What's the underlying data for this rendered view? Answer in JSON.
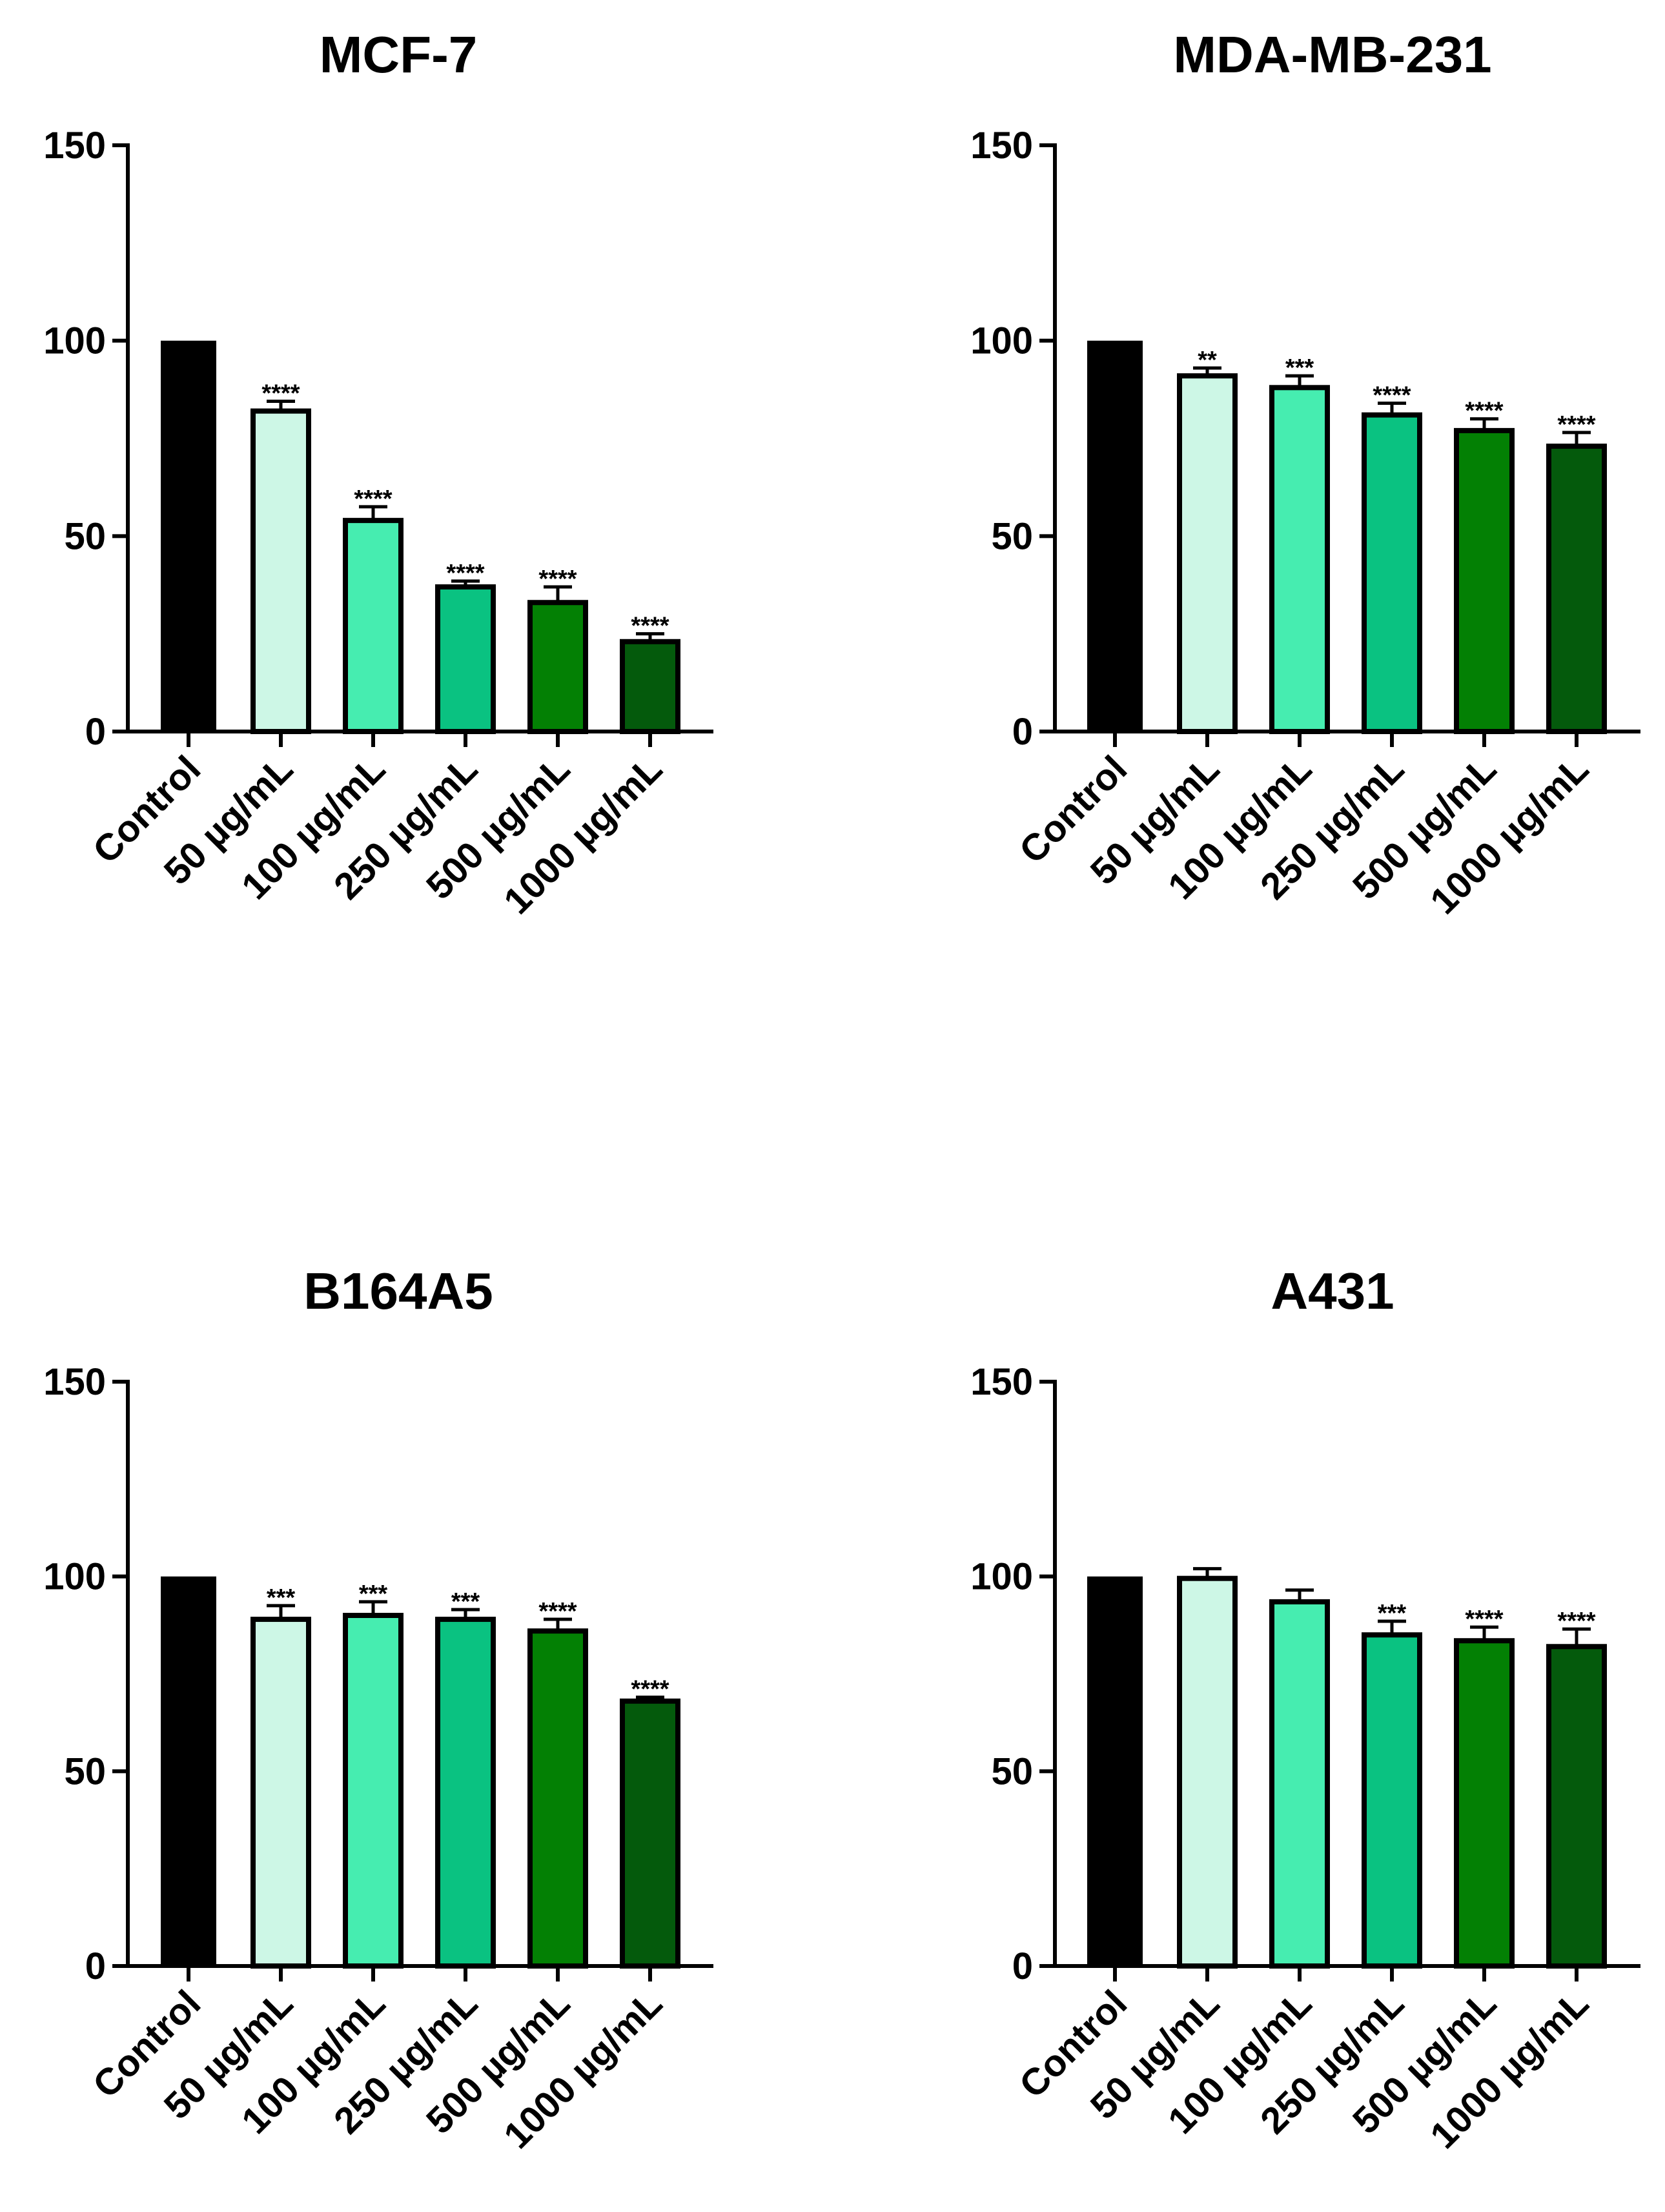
{
  "chart_data": [
    {
      "type": "bar",
      "title": "MCF-7",
      "categories": [
        "Control",
        "50 µg/mL",
        "100 µg/mL",
        "250 µg/mL",
        "500 µg/mL",
        "1000 µg/mL"
      ],
      "values": [
        100,
        82,
        54,
        37,
        33,
        23
      ],
      "errors": [
        0,
        2.5,
        3.5,
        1.5,
        4,
        2
      ],
      "significance": [
        "",
        "****",
        "****",
        "****",
        "****",
        "****"
      ],
      "ylim": [
        0,
        150
      ],
      "yticks": [
        0,
        50,
        100,
        150
      ],
      "xlabel": "",
      "ylabel": ""
    },
    {
      "type": "bar",
      "title": "MDA-MB-231",
      "categories": [
        "Control",
        "50 µg/mL",
        "100 µg/mL",
        "250 µg/mL",
        "500 µg/mL",
        "1000 µg/mL"
      ],
      "values": [
        100,
        91,
        88,
        81,
        77,
        73
      ],
      "errors": [
        0,
        2,
        3,
        3,
        3,
        3.5
      ],
      "significance": [
        "",
        "**",
        "***",
        "****",
        "****",
        "****"
      ],
      "ylim": [
        0,
        150
      ],
      "yticks": [
        0,
        50,
        100,
        150
      ],
      "xlabel": "",
      "ylabel": ""
    },
    {
      "type": "bar",
      "title": "B164A5",
      "categories": [
        "Control",
        "50 µg/mL",
        "100 µg/mL",
        "250 µg/mL",
        "500 µg/mL",
        "1000 µg/mL"
      ],
      "values": [
        100,
        89,
        90,
        89,
        86,
        68
      ],
      "errors": [
        0,
        3.5,
        3.5,
        2.5,
        3,
        1
      ],
      "significance": [
        "",
        "***",
        "***",
        "***",
        "****",
        "****"
      ],
      "ylim": [
        0,
        150
      ],
      "yticks": [
        0,
        50,
        100,
        150
      ],
      "xlabel": "",
      "ylabel": ""
    },
    {
      "type": "bar",
      "title": "A431",
      "categories": [
        "Control",
        "50 µg/mL",
        "100 µg/mL",
        "250 µg/mL",
        "500 µg/mL",
        "1000 µg/mL"
      ],
      "values": [
        100,
        99.5,
        93.5,
        85,
        83.5,
        82
      ],
      "errors": [
        0,
        2.5,
        3,
        3.5,
        3.5,
        4.5
      ],
      "significance": [
        "",
        "",
        "",
        "***",
        "****",
        "****"
      ],
      "ylim": [
        0,
        150
      ],
      "yticks": [
        0,
        50,
        100,
        150
      ],
      "xlabel": "",
      "ylabel": ""
    }
  ],
  "colors": {
    "bars": [
      "#000000",
      "#cdf7e6",
      "#46edb0",
      "#0ac281",
      "#038004",
      "#045a0c"
    ],
    "axis": "#000000"
  }
}
